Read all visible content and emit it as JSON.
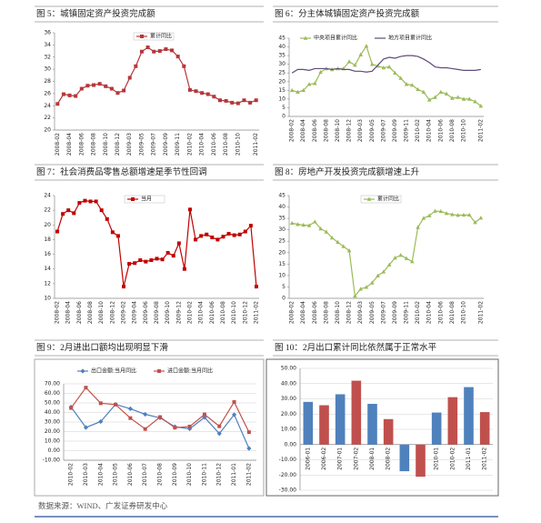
{
  "chart_data": [
    {
      "type": "line",
      "title": "图 5：城镇固定资产投资完成额",
      "legend": "inside-top",
      "categories": [
        "2008-02",
        null,
        "2008-04",
        null,
        "2008-06",
        null,
        "2008-08",
        null,
        "2008-10",
        null,
        "2008-12",
        null,
        "2009-03",
        null,
        "2009-05",
        null,
        "2009-07",
        null,
        "2009-09",
        null,
        "2009-11",
        null,
        "2010-02",
        null,
        "2010-04",
        null,
        "2010-06",
        null,
        "2010-08",
        null,
        "2010-10",
        null,
        null,
        "2011-02"
      ],
      "series": [
        {
          "name": "累计同比",
          "color": "#b5373a",
          "marker": "square",
          "values": [
            24.3,
            25.9,
            25.7,
            25.6,
            26.8,
            27.3,
            27.4,
            27.6,
            27.2,
            26.8,
            26.1,
            26.5,
            28.6,
            30.5,
            32.9,
            33.6,
            32.9,
            33.0,
            33.3,
            33.1,
            32.1,
            30.5,
            26.6,
            26.4,
            26.1,
            25.9,
            25.5,
            24.9,
            24.8,
            24.5,
            24.4,
            24.9,
            24.5,
            24.9
          ]
        }
      ],
      "ylim": [
        20,
        36
      ],
      "yticks": [
        20,
        22,
        24,
        26,
        28,
        30,
        32,
        34,
        36
      ],
      "grid": false
    },
    {
      "type": "line",
      "title": "图 6：分主体城镇固定资产投资完成额",
      "legend": "top",
      "categories": [
        "2008-02",
        null,
        "2008-04",
        null,
        "2008-06",
        null,
        "2008-08",
        null,
        "2008-10",
        null,
        "2008-12",
        null,
        "2009-03",
        null,
        "2009-05",
        null,
        "2009-07",
        null,
        "2009-09",
        null,
        "2009-11",
        null,
        "2010-02",
        null,
        "2010-04",
        null,
        "2010-06",
        null,
        "2010-08",
        null,
        "2010-10",
        null,
        null,
        "2011-02"
      ],
      "series": [
        {
          "name": "中央项目累计同比",
          "color": "#9bbb59",
          "marker": "triangle",
          "values": [
            15,
            14,
            15,
            18.5,
            19,
            25.5,
            27.5,
            27,
            27.5,
            27.5,
            31.5,
            29.5,
            35.5,
            40.5,
            30,
            29,
            28,
            28.5,
            25,
            22,
            18.5,
            18,
            15.5,
            14,
            9.5,
            11,
            14,
            13,
            10.5,
            11,
            10,
            10,
            8.5,
            6
          ]
        },
        {
          "name": "地方项目累计同比",
          "color": "#604a7b",
          "marker": "none",
          "values": [
            25,
            27,
            27,
            26.5,
            27.5,
            27.5,
            27.5,
            27,
            27.5,
            27,
            27,
            26,
            26,
            25.5,
            26,
            29.5,
            33,
            34,
            33.5,
            34.5,
            35,
            35,
            34.5,
            33,
            31,
            28.5,
            28,
            28,
            27.5,
            27,
            26.5,
            26.5,
            26.5,
            27
          ]
        }
      ],
      "ylim": [
        0,
        45
      ],
      "yticks": [
        0,
        5,
        10,
        15,
        20,
        25,
        30,
        35,
        40,
        45
      ],
      "grid": false
    },
    {
      "type": "line",
      "title": "图 7：社会消费品零售总额增速是季节性回调",
      "legend": "inside-top",
      "categories": [
        "2008-02",
        null,
        "2008-04",
        null,
        "2008-06",
        null,
        "2008-08",
        null,
        "2008-10",
        null,
        "2008-12",
        null,
        "2009-02",
        null,
        "2009-04",
        null,
        "2009-06",
        null,
        "2009-08",
        null,
        "2009-10",
        null,
        "2009-12",
        null,
        "2010-02",
        null,
        "2010-04",
        null,
        "2010-06",
        null,
        "2010-08",
        null,
        "2010-10",
        null,
        "2010-12",
        null,
        "2011-02"
      ],
      "series": [
        {
          "name": "当月",
          "color": "#c00000",
          "marker": "square",
          "values": [
            19.1,
            21.5,
            22.0,
            21.6,
            23.0,
            23.3,
            23.2,
            23.2,
            22.0,
            20.8,
            19.0,
            18.5,
            11.6,
            14.7,
            14.8,
            15.2,
            15.0,
            15.2,
            15.4,
            15.3,
            16.2,
            15.8,
            17.5,
            14.0,
            22.1,
            18.0,
            18.5,
            18.7,
            18.3,
            18.0,
            18.4,
            18.8,
            18.6,
            18.7,
            19.1,
            19.9,
            11.6
          ]
        }
      ],
      "ylim": [
        10,
        24
      ],
      "yticks": [
        10,
        12,
        14,
        16,
        18,
        20,
        22,
        24
      ],
      "grid": false
    },
    {
      "type": "line",
      "title": "图 8：房地产开发投资完成额增速上升",
      "legend": "inside-top",
      "categories": [
        "2008-02",
        null,
        "2008-04",
        null,
        "2008-06",
        null,
        "2008-08",
        null,
        "2008-10",
        null,
        "2008-12",
        null,
        "2009-03",
        null,
        "2009-05",
        null,
        "2009-07",
        null,
        "2009-09",
        null,
        "2009-11",
        null,
        "2010-02",
        null,
        "2010-04",
        null,
        "2010-06",
        null,
        "2010-08",
        null,
        "2010-10",
        null,
        null,
        "2011-02"
      ],
      "series": [
        {
          "name": "累计同比",
          "color": "#9bbb59",
          "marker": "triangle",
          "values": [
            32.9,
            32.4,
            32.1,
            31.9,
            33.5,
            30.5,
            29.1,
            26.5,
            24.6,
            22.7,
            20.9,
            1.0,
            4.1,
            4.9,
            6.8,
            9.9,
            11.6,
            14.7,
            17.7,
            18.9,
            17.5,
            16.1,
            31.1,
            35.1,
            36.2,
            38.2,
            38.1,
            37.2,
            36.7,
            36.4,
            36.5,
            36.5,
            33.2,
            35.2
          ]
        }
      ],
      "ylim": [
        0,
        45
      ],
      "yticks": [
        0,
        5,
        10,
        15,
        20,
        25,
        30,
        35,
        40,
        45
      ],
      "grid": false
    },
    {
      "type": "line",
      "title": "图 9：2月进出口额均出现明显下滑",
      "legend": "top",
      "categories": [
        "2010-02",
        "2010-03",
        "2010-04",
        "2010-05",
        "2010-06",
        "2010-07",
        "2010-08",
        "2010-09",
        "2010-10",
        "2010-11",
        "2010-12",
        "2011-01",
        "2011-02"
      ],
      "series": [
        {
          "name": "出口金额:当月同比",
          "color": "#4f81bd",
          "marker": "diamond",
          "values": [
            45.7,
            24.3,
            30.5,
            48.5,
            43.9,
            38.1,
            34.4,
            25.1,
            22.9,
            34.9,
            17.9,
            37.7,
            2.4
          ]
        },
        {
          "name": "进口金额:当月同比",
          "color": "#c0504d",
          "marker": "square",
          "values": [
            44.7,
            66.0,
            49.7,
            48.3,
            34.1,
            22.7,
            35.2,
            24.1,
            25.3,
            38.0,
            25.6,
            51.0,
            19.4
          ]
        }
      ],
      "ylim": [
        -10,
        70
      ],
      "yticks": [
        {
          "value": -10,
          "label": "-10.00"
        },
        {
          "value": 0,
          "label": "0.00"
        },
        {
          "value": 10,
          "label": "10.00"
        },
        {
          "value": 20,
          "label": "20.00"
        },
        {
          "value": 30,
          "label": "30.00"
        },
        {
          "value": 40,
          "label": "40.00"
        },
        {
          "value": 50,
          "label": "50.00"
        },
        {
          "value": 60,
          "label": "60.00"
        },
        {
          "value": 70,
          "label": "70.00"
        }
      ],
      "grid": true
    },
    {
      "type": "bar",
      "title": "图 10：2月出口累计同比依然属于正常水平",
      "categories": [
        "2006-01",
        "2006-02",
        "2007-01",
        "2007-02",
        "2008-01",
        "2008-02",
        "2009-01",
        "2009-02",
        "2010-01",
        "2010-02",
        "2011-01",
        "2011-02"
      ],
      "values": [
        28.0,
        25.8,
        33.0,
        41.9,
        26.7,
        16.7,
        -17.5,
        -21.1,
        21.0,
        31.1,
        37.7,
        21.3
      ],
      "colors": [
        "#4f81bd",
        "#c0504d",
        "#4f81bd",
        "#c0504d",
        "#4f81bd",
        "#c0504d",
        "#4f81bd",
        "#c0504d",
        "#4f81bd",
        "#c0504d",
        "#4f81bd",
        "#c0504d"
      ],
      "ylim": [
        -30,
        50
      ],
      "yticks": [
        {
          "value": -30,
          "label": "-30.00"
        },
        {
          "value": -20,
          "label": "-20.00"
        },
        {
          "value": -10,
          "label": "-10.00"
        },
        {
          "value": 0,
          "label": "0.00"
        },
        {
          "value": 10,
          "label": "10.00"
        },
        {
          "value": 20,
          "label": "20.00"
        },
        {
          "value": 30,
          "label": "30.00"
        },
        {
          "value": 40,
          "label": "40.00"
        },
        {
          "value": 50,
          "label": "50.00"
        }
      ],
      "grid": true
    }
  ],
  "source": "数据来源：WIND、广发证券研发中心"
}
